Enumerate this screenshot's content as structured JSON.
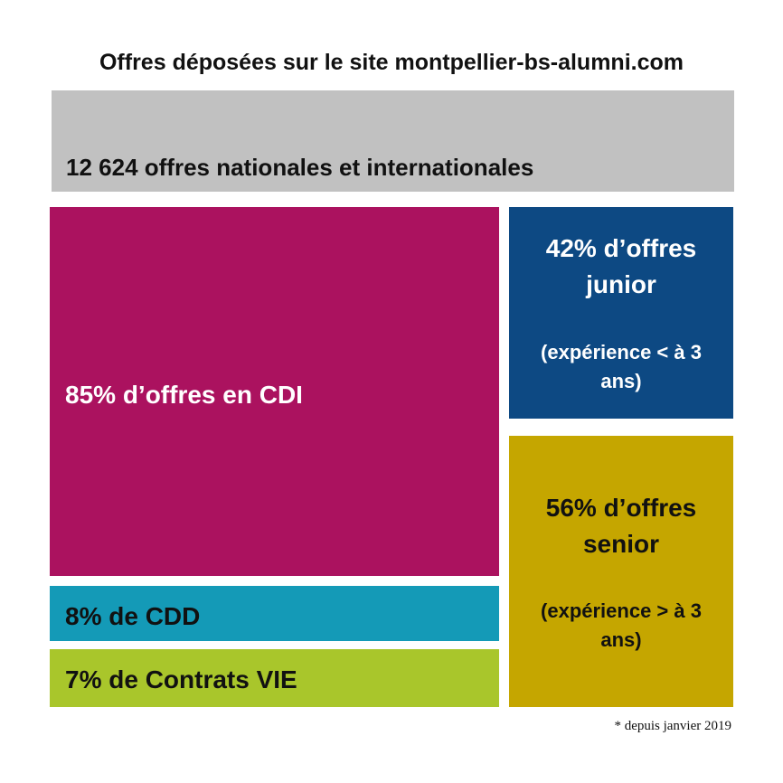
{
  "title": "Offres déposées sur le site montpellier-bs-alumni.com",
  "footnote": "* depuis janvier 2019",
  "colors": {
    "total": "#c1c1c1",
    "cdi": "#ab125f",
    "cdd": "#149ab7",
    "vie": "#a9c62b",
    "junior": "#0d4983",
    "senior": "#c5a600"
  },
  "chart_data": {
    "type": "treemap",
    "total": {
      "value": 12624,
      "label": "12 624 offres nationales et internationales"
    },
    "contract_types": [
      {
        "name": "CDI",
        "percent": 85,
        "label": "85% d’offres en CDI"
      },
      {
        "name": "CDD",
        "percent": 8,
        "label": "8% de CDD"
      },
      {
        "name": "Contrats VIE",
        "percent": 7,
        "label": "7% de Contrats VIE"
      }
    ],
    "experience_levels": [
      {
        "name": "junior",
        "percent": 42,
        "label_line1": "42% d’offres",
        "label_line2": "junior",
        "note_line1": "(expérience < à 3",
        "note_line2": "ans)"
      },
      {
        "name": "senior",
        "percent": 56,
        "label_line1": "56% d’offres",
        "label_line2": "senior",
        "note_line1": "(expérience > à 3",
        "note_line2": "ans)"
      }
    ]
  }
}
